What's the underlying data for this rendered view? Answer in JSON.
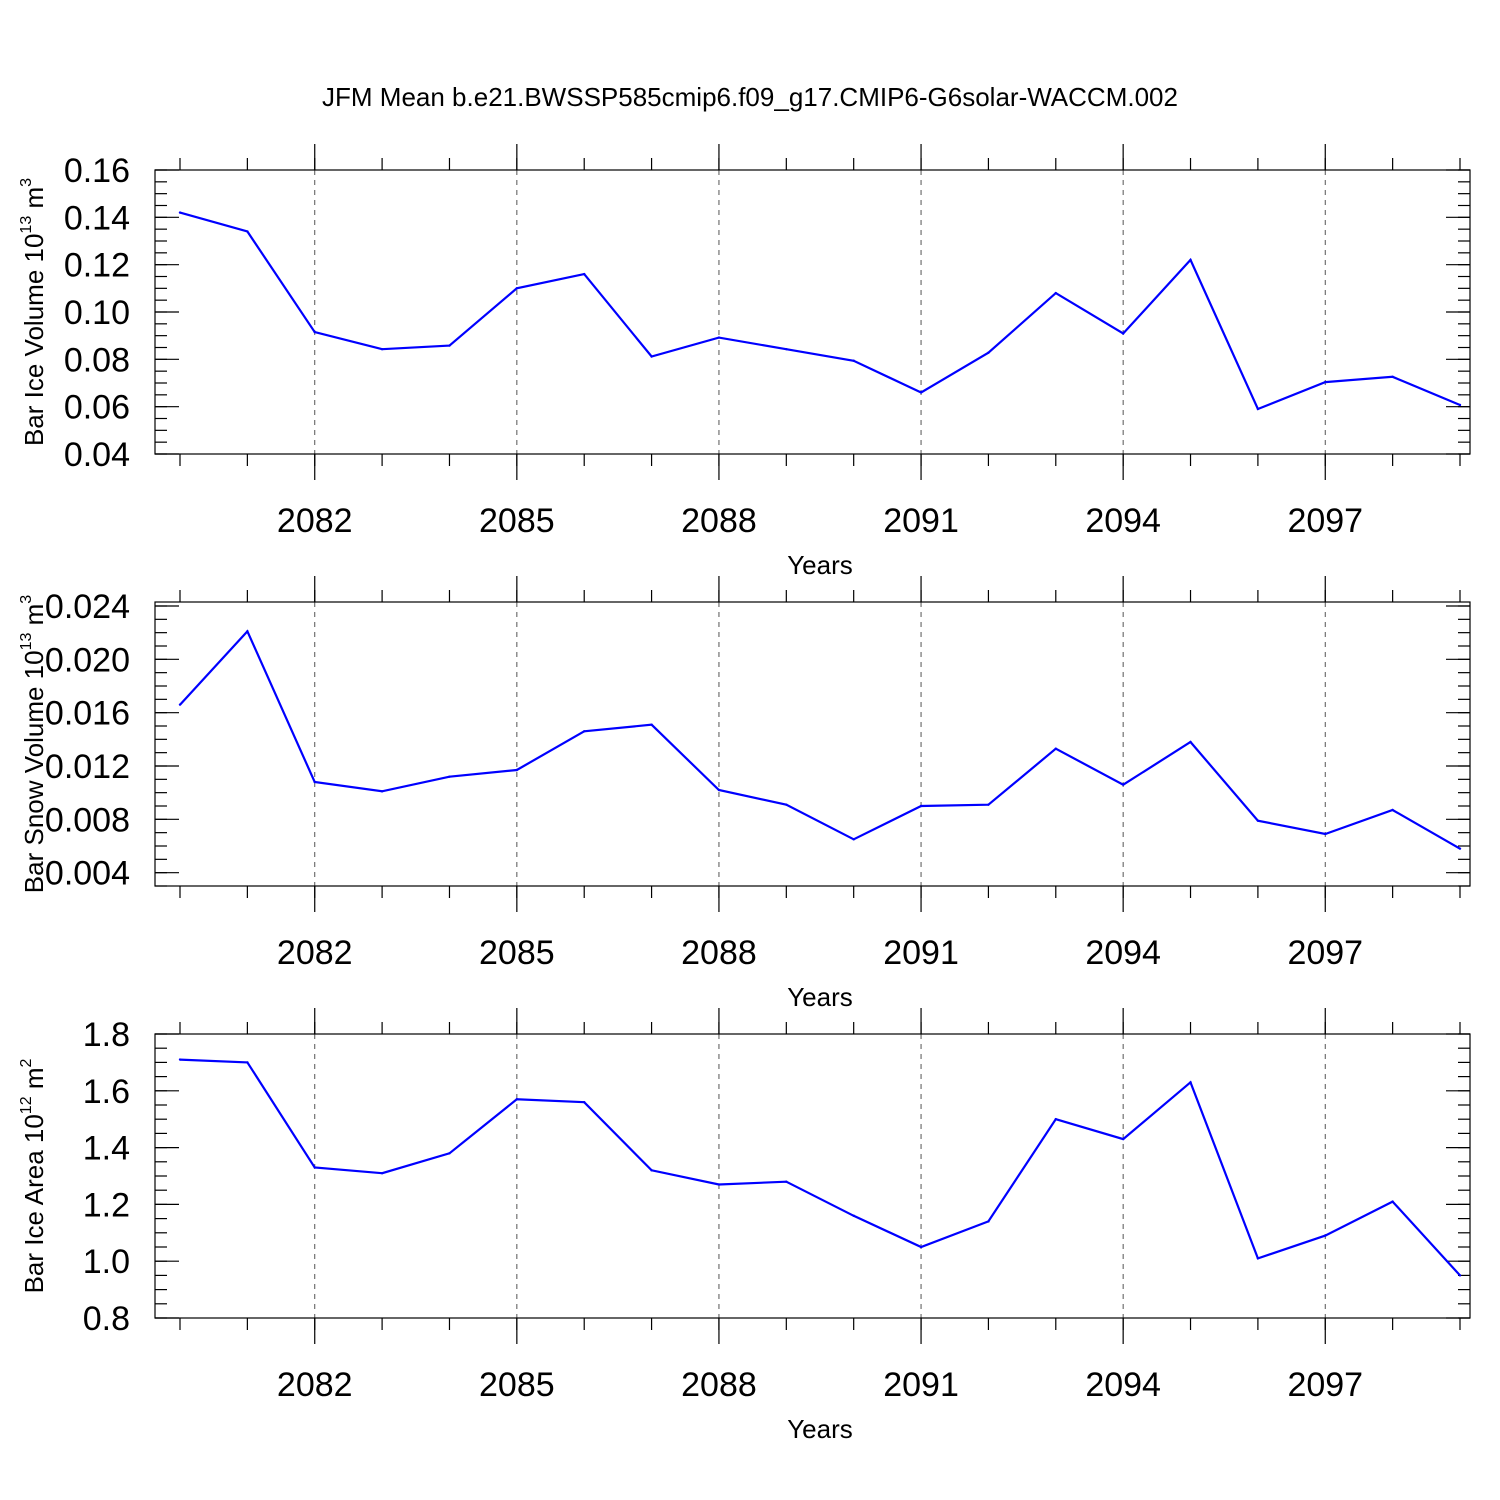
{
  "title": "JFM Mean b.e21.BWSSP585cmip6.f09_g17.CMIP6-G6solar-WACCM.002",
  "colors": {
    "line": "#0000ff",
    "grid": "#555555"
  },
  "chart_data": [
    {
      "type": "line",
      "xlabel": "Years",
      "ylabel": "Bar Ice Volume 10",
      "ylabel_exp": "13",
      "ylabel_unit": "m",
      "ylabel_unit_exp": "3",
      "xlim": [
        2080,
        2099
      ],
      "ylim": [
        0.04,
        0.16
      ],
      "xticks": [
        2082,
        2085,
        2088,
        2091,
        2094,
        2097
      ],
      "xtick_labels": [
        "2082",
        "2085",
        "2088",
        "2091",
        "2094",
        "2097"
      ],
      "yticks": [
        0.04,
        0.06,
        0.08,
        0.1,
        0.12,
        0.14,
        0.16
      ],
      "ytick_labels": [
        "0.04",
        "0.06",
        "0.08",
        "0.10",
        "0.12",
        "0.14",
        "0.16"
      ],
      "yminor_step": 0.005,
      "grid": "vertical-dashed",
      "x": [
        2080,
        2081,
        2082,
        2083,
        2084,
        2085,
        2086,
        2087,
        2088,
        2089,
        2090,
        2091,
        2092,
        2093,
        2094,
        2095,
        2096,
        2097,
        2098,
        2099
      ],
      "values": [
        0.142,
        0.134,
        0.0915,
        0.0843,
        0.0858,
        0.11,
        0.116,
        0.0812,
        0.0892,
        0.0843,
        0.0794,
        0.066,
        0.0828,
        0.108,
        0.0909,
        0.122,
        0.059,
        0.0704,
        0.0726,
        0.0607
      ]
    },
    {
      "type": "line",
      "xlabel": "Years",
      "ylabel": "Bar Snow Volume 10",
      "ylabel_exp": "13",
      "ylabel_unit": "m",
      "ylabel_unit_exp": "3",
      "xlim": [
        2080,
        2099
      ],
      "ylim": [
        0.003,
        0.0243
      ],
      "xticks": [
        2082,
        2085,
        2088,
        2091,
        2094,
        2097
      ],
      "xtick_labels": [
        "2082",
        "2085",
        "2088",
        "2091",
        "2094",
        "2097"
      ],
      "yticks": [
        0.004,
        0.008,
        0.012,
        0.016,
        0.02,
        0.024
      ],
      "ytick_labels": [
        "0.004",
        "0.008",
        "0.012",
        "0.016",
        "0.020",
        "0.024"
      ],
      "yminor_step": 0.001,
      "grid": "vertical-dashed",
      "x": [
        2080,
        2081,
        2082,
        2083,
        2084,
        2085,
        2086,
        2087,
        2088,
        2089,
        2090,
        2091,
        2092,
        2093,
        2094,
        2095,
        2096,
        2097,
        2098,
        2099
      ],
      "values": [
        0.0166,
        0.0221,
        0.0108,
        0.0101,
        0.0112,
        0.0117,
        0.0146,
        0.0151,
        0.0102,
        0.0091,
        0.0065,
        0.009,
        0.0091,
        0.0133,
        0.0106,
        0.0138,
        0.0079,
        0.0069,
        0.0087,
        0.0058
      ]
    },
    {
      "type": "line",
      "xlabel": "Years",
      "ylabel": "Bar Ice Area 10",
      "ylabel_exp": "12",
      "ylabel_unit": "m",
      "ylabel_unit_exp": "2",
      "xlim": [
        2080,
        2099
      ],
      "ylim": [
        0.8,
        1.8
      ],
      "xticks": [
        2082,
        2085,
        2088,
        2091,
        2094,
        2097
      ],
      "xtick_labels": [
        "2082",
        "2085",
        "2088",
        "2091",
        "2094",
        "2097"
      ],
      "yticks": [
        0.8,
        1.0,
        1.2,
        1.4,
        1.6,
        1.8
      ],
      "ytick_labels": [
        "0.8",
        "1.0",
        "1.2",
        "1.4",
        "1.6",
        "1.8"
      ],
      "yminor_step": 0.05,
      "grid": "vertical-dashed",
      "x": [
        2080,
        2081,
        2082,
        2083,
        2084,
        2085,
        2086,
        2087,
        2088,
        2089,
        2090,
        2091,
        2092,
        2093,
        2094,
        2095,
        2096,
        2097,
        2098,
        2099
      ],
      "values": [
        1.71,
        1.7,
        1.33,
        1.31,
        1.38,
        1.57,
        1.56,
        1.32,
        1.27,
        1.28,
        1.16,
        1.05,
        1.14,
        1.5,
        1.43,
        1.63,
        1.01,
        1.09,
        1.21,
        0.95
      ]
    }
  ]
}
